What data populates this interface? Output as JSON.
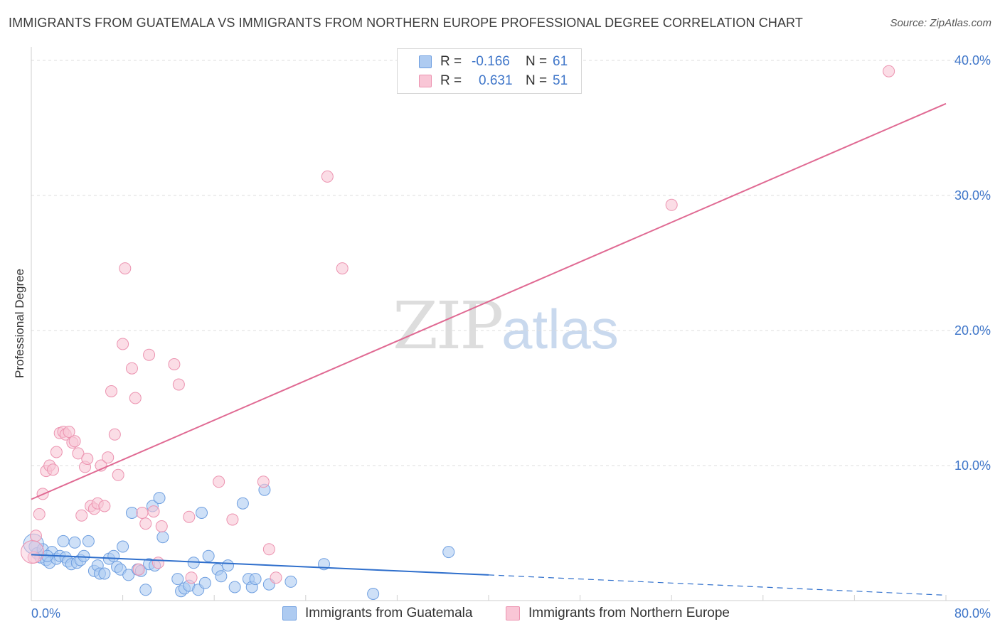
{
  "header": {
    "title": "IMMIGRANTS FROM GUATEMALA VS IMMIGRANTS FROM NORTHERN EUROPE PROFESSIONAL DEGREE CORRELATION CHART",
    "source": "Source: ZipAtlas.com"
  },
  "watermark": {
    "zip": "ZIP",
    "atlas": "atlas"
  },
  "legend": {
    "rows": [
      {
        "r_label": "R =",
        "r_value": "-0.166",
        "n_label": "N =",
        "n_value": "61",
        "color": "#aecbf1",
        "border": "#6f9fe0"
      },
      {
        "r_label": "R =",
        "r_value": "0.631",
        "n_label": "N =",
        "n_value": "51",
        "color": "#f9c6d6",
        "border": "#ec93b0"
      }
    ]
  },
  "bottom_legend": {
    "guatemala": "Immigrants from Guatemala",
    "northern_europe": "Immigrants from Northern Europe"
  },
  "colors": {
    "blue_fill": "#aecbf1",
    "blue_stroke": "#6f9fe0",
    "blue_line": "#2f6fcc",
    "pink_fill": "#f9c6d6",
    "pink_stroke": "#ec93b0",
    "pink_line": "#e06a93",
    "grid": "#dcdcdc",
    "tick_text": "#3f76c9"
  },
  "chart_data": {
    "type": "scatter",
    "title": "IMMIGRANTS FROM GUATEMALA VS IMMIGRANTS FROM NORTHERN EUROPE PROFESSIONAL DEGREE CORRELATION CHART",
    "xlabel": "",
    "ylabel": "Professional Degree",
    "xlim": [
      0,
      80
    ],
    "ylim": [
      0,
      41
    ],
    "x_tick_labels": [
      "0.0%",
      "80.0%"
    ],
    "y_ticks": [
      10,
      20,
      30,
      40
    ],
    "y_tick_labels": [
      "10.0%",
      "20.0%",
      "30.0%",
      "40.0%"
    ],
    "grid": true,
    "series": [
      {
        "name": "Immigrants from Guatemala",
        "r": -0.166,
        "n": 61,
        "trend": {
          "x0": 0,
          "y0": 3.4,
          "x1": 40,
          "y1": 1.9,
          "dash_to_x": 80,
          "dash_to_y": 0.4
        },
        "points": [
          [
            0.3,
            4.0
          ],
          [
            0.5,
            3.5
          ],
          [
            0.8,
            3.2
          ],
          [
            1.0,
            3.8
          ],
          [
            1.3,
            3.0
          ],
          [
            1.6,
            2.8
          ],
          [
            1.8,
            3.6
          ],
          [
            2.2,
            3.1
          ],
          [
            2.5,
            3.3
          ],
          [
            2.8,
            4.4
          ],
          [
            3.0,
            3.2
          ],
          [
            3.2,
            2.9
          ],
          [
            3.5,
            2.7
          ],
          [
            3.8,
            4.3
          ],
          [
            4.0,
            2.8
          ],
          [
            4.3,
            3.0
          ],
          [
            4.6,
            3.3
          ],
          [
            5.0,
            4.4
          ],
          [
            5.5,
            2.2
          ],
          [
            5.8,
            2.6
          ],
          [
            6.0,
            2.0
          ],
          [
            6.4,
            2.0
          ],
          [
            6.8,
            3.1
          ],
          [
            7.2,
            3.3
          ],
          [
            7.5,
            2.5
          ],
          [
            7.8,
            2.3
          ],
          [
            8.0,
            4.0
          ],
          [
            8.5,
            1.9
          ],
          [
            8.8,
            6.5
          ],
          [
            9.3,
            2.3
          ],
          [
            9.6,
            2.2
          ],
          [
            10.0,
            0.8
          ],
          [
            10.3,
            2.7
          ],
          [
            10.6,
            7.0
          ],
          [
            10.8,
            2.6
          ],
          [
            11.2,
            7.6
          ],
          [
            11.5,
            4.7
          ],
          [
            12.8,
            1.6
          ],
          [
            13.1,
            0.7
          ],
          [
            13.4,
            0.9
          ],
          [
            13.8,
            1.1
          ],
          [
            14.2,
            2.8
          ],
          [
            14.6,
            0.8
          ],
          [
            14.9,
            6.5
          ],
          [
            15.2,
            1.3
          ],
          [
            15.5,
            3.3
          ],
          [
            16.3,
            2.3
          ],
          [
            16.6,
            1.8
          ],
          [
            17.2,
            2.6
          ],
          [
            17.8,
            1.0
          ],
          [
            18.5,
            7.2
          ],
          [
            19.0,
            1.6
          ],
          [
            19.3,
            1.0
          ],
          [
            19.6,
            1.6
          ],
          [
            20.4,
            8.2
          ],
          [
            20.8,
            1.2
          ],
          [
            22.7,
            1.4
          ],
          [
            25.6,
            2.7
          ],
          [
            29.9,
            0.5
          ],
          [
            36.5,
            3.6
          ],
          [
            1.4,
            3.3
          ]
        ]
      },
      {
        "name": "Immigrants from Northern Europe",
        "r": 0.631,
        "n": 51,
        "trend": {
          "x0": 0,
          "y0": 7.5,
          "x1": 80,
          "y1": 36.8
        },
        "points": [
          [
            0.2,
            3.2
          ],
          [
            0.4,
            4.8
          ],
          [
            0.7,
            6.4
          ],
          [
            1.0,
            7.9
          ],
          [
            1.3,
            9.6
          ],
          [
            1.6,
            10.0
          ],
          [
            1.9,
            9.7
          ],
          [
            2.2,
            11.0
          ],
          [
            2.5,
            12.4
          ],
          [
            2.8,
            12.5
          ],
          [
            3.0,
            12.3
          ],
          [
            3.3,
            12.5
          ],
          [
            3.6,
            11.7
          ],
          [
            3.8,
            11.8
          ],
          [
            4.1,
            10.9
          ],
          [
            4.4,
            6.3
          ],
          [
            4.7,
            9.9
          ],
          [
            4.9,
            10.5
          ],
          [
            5.2,
            7.0
          ],
          [
            5.5,
            6.8
          ],
          [
            5.8,
            7.2
          ],
          [
            6.1,
            10.0
          ],
          [
            6.4,
            7.0
          ],
          [
            6.7,
            10.6
          ],
          [
            7.0,
            15.5
          ],
          [
            7.3,
            12.3
          ],
          [
            7.6,
            9.3
          ],
          [
            8.0,
            19.0
          ],
          [
            8.2,
            24.6
          ],
          [
            8.8,
            17.2
          ],
          [
            9.1,
            15.0
          ],
          [
            9.4,
            2.3
          ],
          [
            9.7,
            6.5
          ],
          [
            10.0,
            5.7
          ],
          [
            10.3,
            18.2
          ],
          [
            10.7,
            6.6
          ],
          [
            11.1,
            2.8
          ],
          [
            11.4,
            5.5
          ],
          [
            12.5,
            17.5
          ],
          [
            12.9,
            16.0
          ],
          [
            13.8,
            6.2
          ],
          [
            14.0,
            1.7
          ],
          [
            16.4,
            8.8
          ],
          [
            17.6,
            6.0
          ],
          [
            20.3,
            8.8
          ],
          [
            20.8,
            3.8
          ],
          [
            21.4,
            1.7
          ],
          [
            25.9,
            31.4
          ],
          [
            27.2,
            24.6
          ],
          [
            56.0,
            29.3
          ],
          [
            75.0,
            39.2
          ]
        ]
      }
    ]
  }
}
